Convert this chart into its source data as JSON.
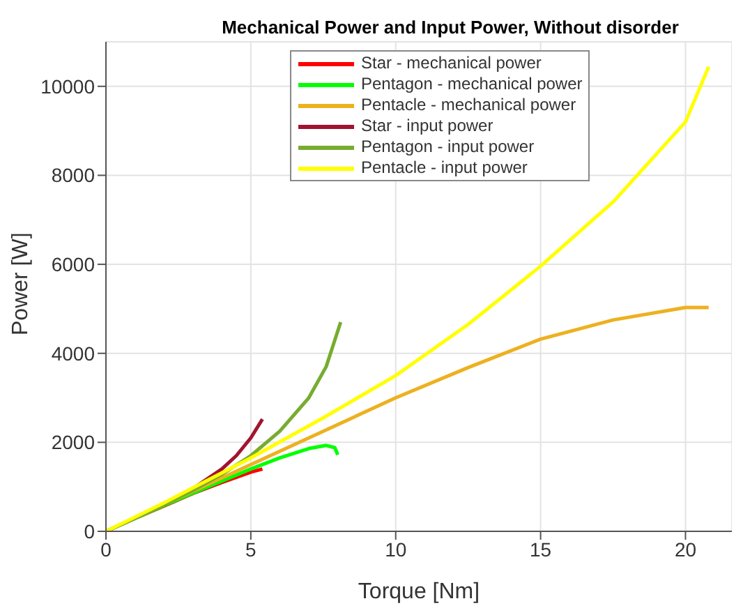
{
  "chart_data": {
    "type": "line",
    "title": "Mechanical Power and Input Power, Without disorder",
    "xlabel": "Torque [Nm]",
    "ylabel": "Power [W]",
    "xlim": [
      0,
      21.6
    ],
    "ylim": [
      0,
      11000
    ],
    "xticks": [
      0,
      5,
      10,
      15,
      20
    ],
    "yticks": [
      0,
      2000,
      4000,
      6000,
      8000,
      10000
    ],
    "grid": true,
    "legend": "top",
    "line_style": "solid",
    "marker": "none",
    "series": [
      {
        "name": "Star - mechanical power",
        "color": "#ff0000",
        "x": [
          0,
          1,
          2,
          3,
          4,
          5,
          5.4
        ],
        "values": [
          0,
          290,
          570,
          850,
          1100,
          1330,
          1400
        ]
      },
      {
        "name": "Pentagon - mechanical power",
        "color": "#00ff00",
        "x": [
          0,
          1,
          2,
          3,
          4,
          5,
          6,
          7,
          7.6,
          7.9,
          8.0
        ],
        "values": [
          0,
          290,
          580,
          860,
          1130,
          1400,
          1650,
          1860,
          1930,
          1880,
          1720
        ]
      },
      {
        "name": "Pentacle - mechanical power",
        "color": "#edb120",
        "x": [
          0,
          2,
          5,
          7.5,
          10,
          12.5,
          15,
          17.5,
          20,
          20.8
        ],
        "values": [
          0,
          600,
          1500,
          2250,
          3000,
          3680,
          4320,
          4750,
          5030,
          5030
        ]
      },
      {
        "name": "Star - input power",
        "color": "#a2142f",
        "x": [
          2,
          3,
          4,
          4.5,
          5,
          5.4
        ],
        "values": [
          600,
          960,
          1400,
          1700,
          2100,
          2520
        ]
      },
      {
        "name": "Pentagon - input power",
        "color": "#77ac30",
        "x": [
          0,
          1,
          2,
          3,
          4,
          5,
          6,
          7,
          7.6,
          8.0,
          8.1
        ],
        "values": [
          0,
          290,
          600,
          920,
          1280,
          1700,
          2250,
          3000,
          3700,
          4500,
          4700
        ]
      },
      {
        "name": "Pentacle - input power",
        "color": "#ffff00",
        "x": [
          0,
          2,
          5,
          7.5,
          10,
          12.5,
          15,
          17.5,
          20,
          20.8
        ],
        "values": [
          0,
          640,
          1650,
          2550,
          3500,
          4650,
          5960,
          7400,
          9200,
          10440
        ]
      }
    ]
  }
}
